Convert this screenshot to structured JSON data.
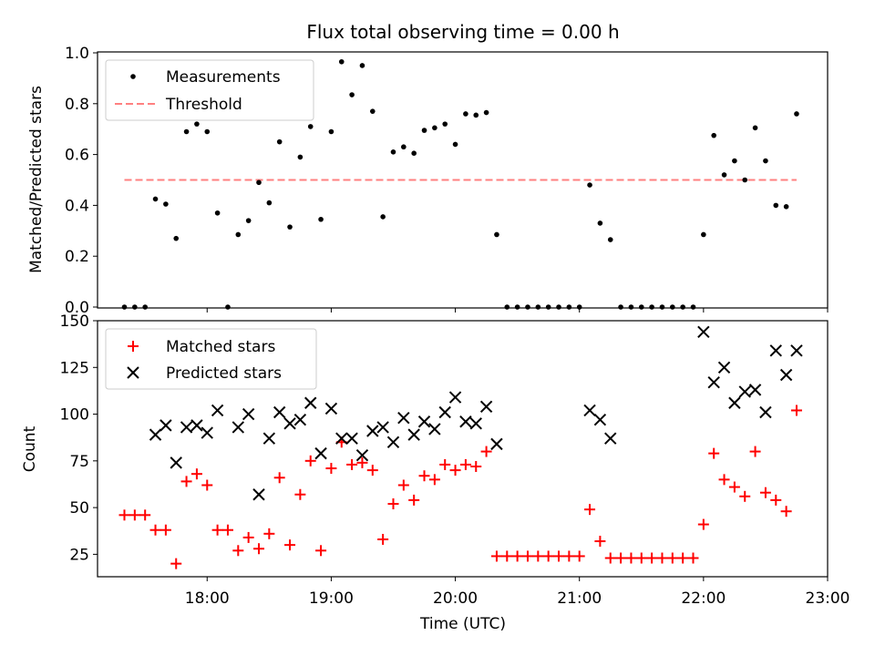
{
  "title": "Flux total observing time = 0.00 h",
  "colors": {
    "measurement": "#000000",
    "threshold": "#ff8080",
    "matched": "#ff0000",
    "predicted": "#000000"
  },
  "chart_data": [
    {
      "type": "scatter",
      "xlabel": "",
      "ylabel": "Matched/Predicted stars",
      "xlim": [
        "17:07",
        "23:00"
      ],
      "ylim": [
        0,
        1.0
      ],
      "yticks": [
        "0.0",
        "0.2",
        "0.4",
        "0.6",
        "0.8",
        "1.0"
      ],
      "legend_position": "top-left",
      "series": [
        {
          "name": "Measurements",
          "marker": "dot",
          "x": [
            "17:20",
            "17:25",
            "17:30",
            "17:35",
            "17:40",
            "17:45",
            "17:50",
            "17:55",
            "18:00",
            "18:05",
            "18:10",
            "18:15",
            "18:20",
            "18:25",
            "18:30",
            "18:35",
            "18:40",
            "18:45",
            "18:50",
            "18:55",
            "19:00",
            "19:05",
            "19:10",
            "19:15",
            "19:20",
            "19:25",
            "19:30",
            "19:35",
            "19:40",
            "19:45",
            "19:50",
            "19:55",
            "20:00",
            "20:05",
            "20:10",
            "20:15",
            "20:20",
            "20:25",
            "20:30",
            "20:35",
            "20:40",
            "20:45",
            "20:50",
            "20:55",
            "21:00",
            "21:05",
            "21:10",
            "21:15",
            "21:20",
            "21:25",
            "21:30",
            "21:35",
            "21:40",
            "21:45",
            "21:50",
            "21:55",
            "22:00",
            "22:05",
            "22:10",
            "22:15",
            "22:20",
            "22:25",
            "22:30",
            "22:35",
            "22:40",
            "22:45"
          ],
          "values": [
            0.0,
            0.0,
            0.0,
            0.425,
            0.405,
            0.27,
            0.69,
            0.72,
            0.69,
            0.37,
            0.0,
            0.285,
            0.34,
            0.49,
            0.41,
            0.65,
            0.315,
            0.59,
            0.71,
            0.345,
            0.69,
            0.965,
            0.835,
            0.95,
            0.77,
            0.355,
            0.61,
            0.63,
            0.605,
            0.695,
            0.705,
            0.72,
            0.64,
            0.76,
            0.755,
            0.765,
            0.285,
            0.0,
            0.0,
            0.0,
            0.0,
            0.0,
            0.0,
            0.0,
            0.0,
            0.48,
            0.33,
            0.265,
            0.0,
            0.0,
            0.0,
            0.0,
            0.0,
            0.0,
            0.0,
            0.0,
            0.285,
            0.675,
            0.52,
            0.575,
            0.5,
            0.705,
            0.575,
            0.4,
            0.395,
            0.76
          ]
        },
        {
          "name": "Threshold",
          "marker": "dashed-line",
          "x": [
            "17:20",
            "22:45"
          ],
          "values": [
            0.5,
            0.5
          ]
        }
      ]
    },
    {
      "type": "scatter",
      "xlabel": "Time (UTC)",
      "ylabel": "Count",
      "xlim": [
        "17:07",
        "23:00"
      ],
      "ylim": [
        13,
        150
      ],
      "xticks": [
        "18:00",
        "19:00",
        "20:00",
        "21:00",
        "22:00",
        "23:00"
      ],
      "yticks": [
        "25",
        "50",
        "75",
        "100",
        "125",
        "150"
      ],
      "legend_position": "top-left",
      "series": [
        {
          "name": "Matched stars",
          "marker": "plus",
          "x": [
            "17:20",
            "17:25",
            "17:30",
            "17:35",
            "17:40",
            "17:45",
            "17:50",
            "17:55",
            "18:00",
            "18:05",
            "18:10",
            "18:15",
            "18:20",
            "18:25",
            "18:30",
            "18:35",
            "18:40",
            "18:45",
            "18:50",
            "18:55",
            "19:00",
            "19:05",
            "19:10",
            "19:15",
            "19:20",
            "19:25",
            "19:30",
            "19:35",
            "19:40",
            "19:45",
            "19:50",
            "19:55",
            "20:00",
            "20:05",
            "20:10",
            "20:15",
            "20:20",
            "20:25",
            "20:30",
            "20:35",
            "20:40",
            "20:45",
            "20:50",
            "20:55",
            "21:00",
            "21:05",
            "21:10",
            "21:15",
            "21:20",
            "21:25",
            "21:30",
            "21:35",
            "21:40",
            "21:45",
            "21:50",
            "21:55",
            "22:00",
            "22:05",
            "22:10",
            "22:15",
            "22:20",
            "22:25",
            "22:30",
            "22:35",
            "22:40",
            "22:45"
          ],
          "values": [
            46,
            46,
            46,
            38,
            38,
            20,
            64,
            68,
            62,
            38,
            38,
            27,
            34,
            28,
            36,
            66,
            30,
            57,
            75,
            27,
            71,
            85,
            73,
            74,
            70,
            33,
            52,
            62,
            54,
            67,
            65,
            73,
            70,
            73,
            72,
            80,
            24,
            24,
            24,
            24,
            24,
            24,
            24,
            24,
            24,
            49,
            32,
            23,
            23,
            23,
            23,
            23,
            23,
            23,
            23,
            23,
            41,
            79,
            65,
            61,
            56,
            80,
            58,
            54,
            48,
            102
          ]
        },
        {
          "name": "Predicted stars",
          "marker": "x",
          "x": [
            "17:35",
            "17:40",
            "17:45",
            "17:50",
            "17:55",
            "18:00",
            "18:05",
            "18:15",
            "18:20",
            "18:25",
            "18:30",
            "18:35",
            "18:40",
            "18:45",
            "18:50",
            "18:55",
            "19:00",
            "19:05",
            "19:10",
            "19:15",
            "19:20",
            "19:25",
            "19:30",
            "19:35",
            "19:40",
            "19:45",
            "19:50",
            "19:55",
            "20:00",
            "20:05",
            "20:10",
            "20:15",
            "20:20",
            "21:05",
            "21:10",
            "21:15",
            "22:00",
            "22:05",
            "22:10",
            "22:15",
            "22:20",
            "22:25",
            "22:30",
            "22:35",
            "22:40",
            "22:45"
          ],
          "values": [
            89,
            94,
            74,
            93,
            94,
            90,
            102,
            93,
            100,
            57,
            87,
            101,
            95,
            97,
            106,
            79,
            103,
            87,
            87,
            78,
            91,
            93,
            85,
            98,
            89,
            96,
            92,
            101,
            109,
            96,
            95,
            104,
            84,
            102,
            97,
            87,
            144,
            117,
            125,
            106,
            112,
            113,
            101,
            134,
            121,
            134
          ]
        }
      ]
    }
  ]
}
